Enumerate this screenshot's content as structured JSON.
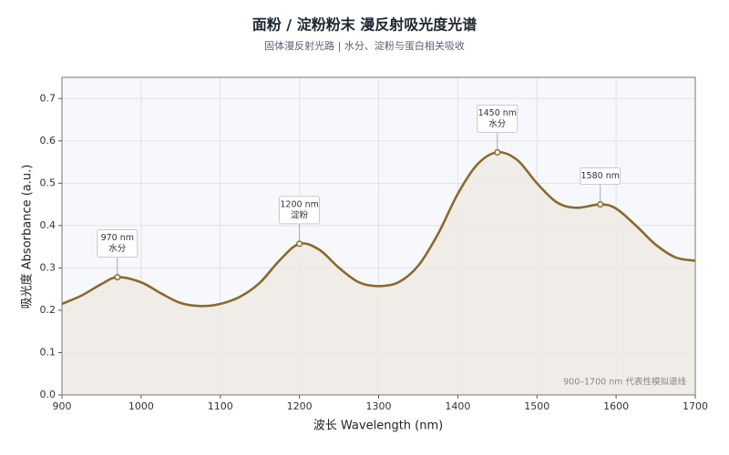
{
  "chart_data": {
    "type": "line",
    "title": "面粉 / 淀粉粉末  漫反射吸光度光谱",
    "subtitle": "固体漫反射光路 | 水分、淀粉与蛋白相关吸收",
    "x_label": "波长 Wavelength (nm)",
    "y_label": "吸光度 Absorbance (a.u.)",
    "note": "900–1700 nm 代表性模拟谱线",
    "x": [
      900,
      925,
      950,
      970,
      1000,
      1025,
      1050,
      1075,
      1100,
      1125,
      1150,
      1175,
      1200,
      1225,
      1250,
      1275,
      1300,
      1325,
      1350,
      1375,
      1400,
      1425,
      1450,
      1475,
      1500,
      1525,
      1550,
      1580,
      1600,
      1625,
      1650,
      1675,
      1700
    ],
    "series": [
      {
        "color": "#8a6a2c",
        "fill": "#eeebe6",
        "values": [
          0.215,
          0.235,
          0.262,
          0.278,
          0.266,
          0.24,
          0.217,
          0.21,
          0.215,
          0.232,
          0.265,
          0.318,
          0.357,
          0.343,
          0.3,
          0.266,
          0.257,
          0.266,
          0.305,
          0.38,
          0.475,
          0.545,
          0.573,
          0.555,
          0.5,
          0.455,
          0.442,
          0.45,
          0.44,
          0.4,
          0.355,
          0.325,
          0.317
        ]
      }
    ],
    "annotations": [
      {
        "x": 970,
        "y": 0.278,
        "lines": [
          "970 nm",
          "水分"
        ]
      },
      {
        "x": 1200,
        "y": 0.357,
        "lines": [
          "1200 nm",
          "淀粉"
        ]
      },
      {
        "x": 1450,
        "y": 0.573,
        "lines": [
          "1450 nm",
          "水分"
        ]
      },
      {
        "x": 1580,
        "y": 0.45,
        "lines": [
          "1580 nm"
        ]
      }
    ],
    "xlim": [
      900,
      1700
    ],
    "xticks": [
      900,
      1000,
      1100,
      1200,
      1300,
      1400,
      1500,
      1600,
      1700
    ],
    "ylim": [
      0,
      0.75
    ],
    "yticks": [
      {
        "value": 0,
        "label": "0.0"
      },
      0.1,
      0.2,
      0.3,
      0.4,
      0.5,
      0.6,
      0.7
    ],
    "grid": true
  }
}
